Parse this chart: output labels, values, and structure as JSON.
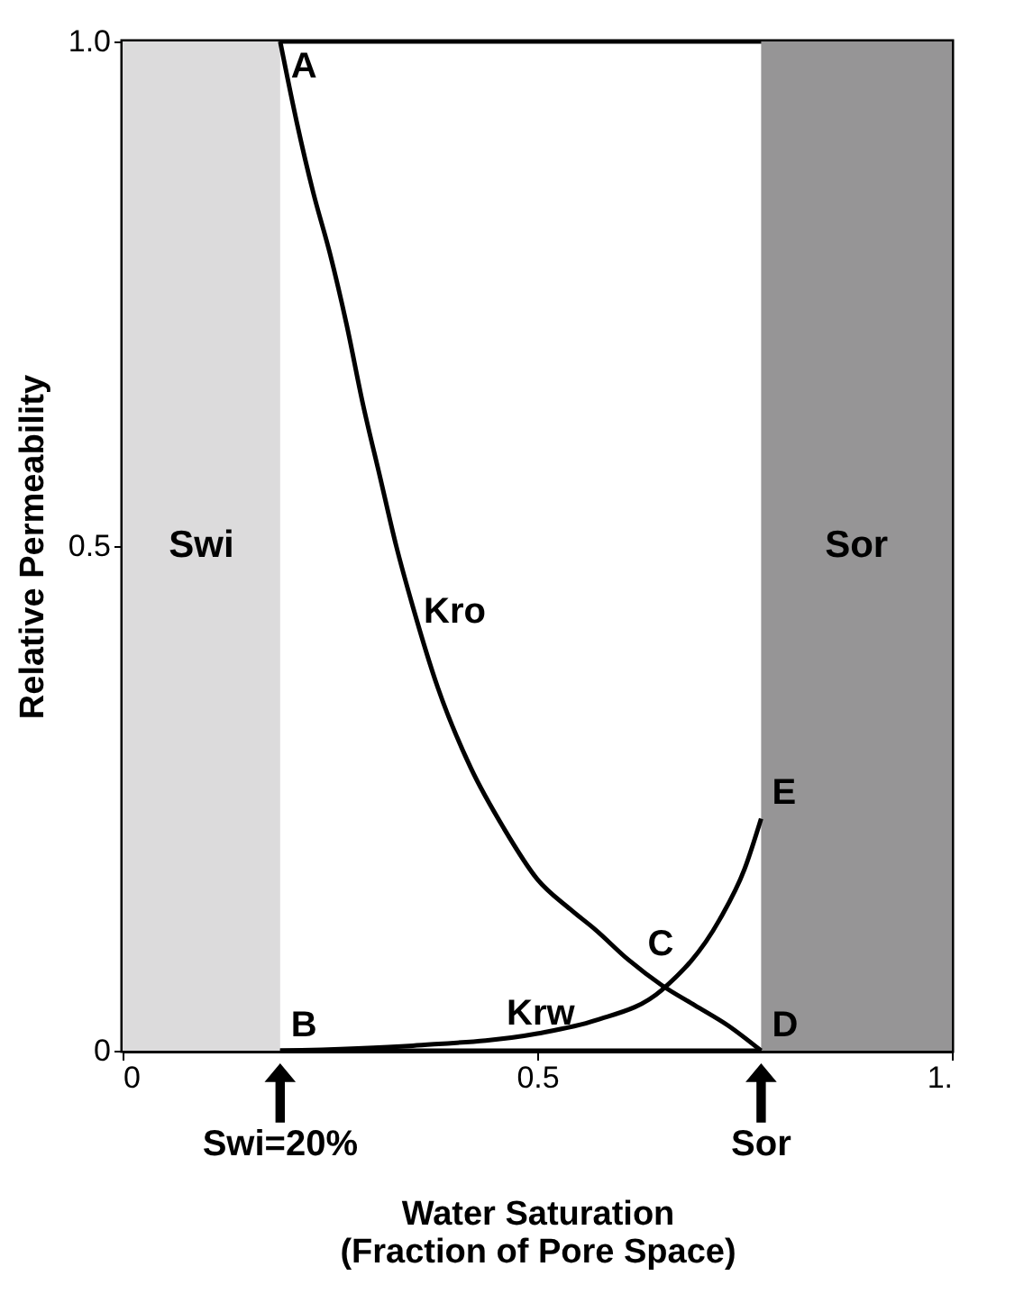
{
  "chart_data": {
    "type": "line",
    "xlabel": "Water Saturation\n(Fraction of Pore Space)",
    "ylabel": "Relative Permeability",
    "xlim": [
      0,
      1
    ],
    "ylim": [
      0,
      1
    ],
    "xticks": [
      0,
      0.5,
      {
        "value": 1,
        "label": "1."
      }
    ],
    "yticks": [
      0,
      0.5,
      {
        "value": 1,
        "label": "1.0"
      }
    ],
    "grid": false,
    "marker": "none",
    "line_style": "solid",
    "series": [
      {
        "color": "#000000",
        "x": [
          0.19,
          0.21,
          0.23,
          0.25,
          0.27,
          0.29,
          0.31,
          0.33,
          0.35,
          0.38,
          0.42,
          0.46,
          0.5,
          0.54,
          0.57,
          0.61,
          0.65,
          0.69,
          0.73,
          0.77
        ],
        "values": [
          1.0,
          0.92,
          0.85,
          0.79,
          0.72,
          0.64,
          0.57,
          0.5,
          0.44,
          0.36,
          0.28,
          0.22,
          0.17,
          0.14,
          0.12,
          0.09,
          0.065,
          0.045,
          0.025,
          0.0
        ]
      },
      {
        "color": "#000000",
        "x": [
          0.19,
          0.35,
          0.5,
          0.57,
          0.65,
          0.72,
          0.75,
          0.77
        ],
        "values": [
          0.0,
          0.005,
          0.017,
          0.03,
          0.06,
          0.13,
          0.18,
          0.23
        ]
      }
    ],
    "bands": [
      {
        "axis": "x",
        "from": 0,
        "to": 0.19,
        "label": "Swi",
        "color": "#dcdbdc"
      },
      {
        "axis": "x",
        "from": 0.77,
        "to": 1,
        "label": "Sor",
        "color": "#969596"
      }
    ],
    "annotations": [
      {
        "text": "A",
        "x": 0.19,
        "y": 1.0
      },
      {
        "text": "B",
        "x": 0.19,
        "y": 0.0
      },
      {
        "text": "C",
        "x": 0.62,
        "y": 0.08
      },
      {
        "text": "D",
        "x": 0.77,
        "y": 0.0
      },
      {
        "text": "E",
        "x": 0.77,
        "y": 0.23
      },
      {
        "text": "Kro",
        "x": 0.35,
        "y": 0.41
      },
      {
        "text": "Krw",
        "x": 0.45,
        "y": 0.012
      },
      "Swi=20%",
      "Sor"
    ]
  }
}
